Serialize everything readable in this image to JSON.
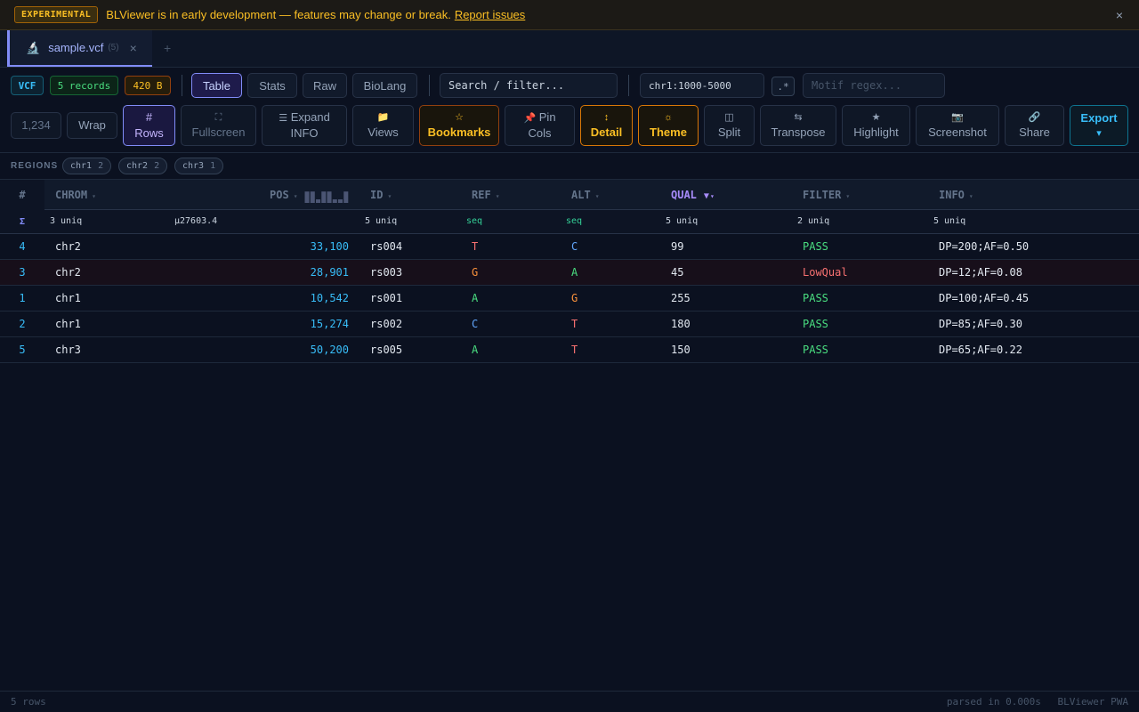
{
  "banner": {
    "badge": "EXPERIMENTAL",
    "text": "BLViewer is in early development — features may change or break.",
    "link": "Report issues",
    "close": "×"
  },
  "tabs": {
    "file_icon": "microscope-icon",
    "file_name": "sample.vcf",
    "file_count": "(5)",
    "close": "×",
    "add": "+"
  },
  "toolbar": {
    "format": "VCF",
    "records": "5 records",
    "size": "420 B",
    "views": [
      "Table",
      "Stats",
      "Raw",
      "BioLang"
    ],
    "active_view": "Table",
    "search_placeholder": "Search / filter...",
    "region_value": "chr1:1000-5000",
    "regex_toggle": ".*",
    "motif_placeholder": "Motif regex...",
    "buttons": {
      "number_format": "1,234",
      "wrap": "Wrap",
      "rows_icon": "#",
      "rows": "Rows",
      "fullscreen_icon": "⛶",
      "fullscreen": "Fullscreen",
      "expand_icon": "☰",
      "expand_1": "Expand",
      "expand_2": "INFO",
      "views_icon": "📁",
      "views": "Views",
      "bookmarks_icon": "☆",
      "bookmarks": "Bookmarks",
      "pin_icon": "📌",
      "pin_1": "Pin",
      "pin_2": "Cols",
      "detail_icon": "↕",
      "detail": "Detail",
      "theme_icon": "☼",
      "theme": "Theme",
      "split_icon": "◫",
      "split": "Split",
      "transpose_icon": "⇆",
      "transpose": "Transpose",
      "highlight_icon": "★",
      "highlight": "Highlight",
      "screenshot_icon": "📷",
      "screenshot": "Screenshot",
      "share_icon": "🔗",
      "share": "Share",
      "export": "Export",
      "export_caret": "▾"
    }
  },
  "regions": {
    "label": "REGIONS",
    "chips": [
      {
        "name": "chr1",
        "count": "2"
      },
      {
        "name": "chr2",
        "count": "2"
      },
      {
        "name": "chr3",
        "count": "1"
      }
    ]
  },
  "table": {
    "row_number_header": "#",
    "columns": [
      "CHROM",
      "POS",
      "ID",
      "REF",
      "ALT",
      "QUAL",
      "FILTER",
      "INFO"
    ],
    "sort_arrow": "▾",
    "sorted_column": "QUAL",
    "sorted_indicator": "▼",
    "pos_histogram": [
      0.8,
      0.8,
      0.25,
      0.8,
      0.8,
      0.25,
      0.25,
      0.8
    ],
    "summary": {
      "sigma": "Σ",
      "chrom": "3 uniq",
      "pos": "μ27603.4",
      "id": "5 uniq",
      "ref": "seq",
      "alt": "seq",
      "qual": "5 uniq",
      "filter": "2 uniq",
      "info": "5 uniq"
    },
    "rows": [
      {
        "n": "4",
        "chrom": "chr2",
        "pos": "33,100",
        "id": "rs004",
        "ref": "T",
        "alt": "C",
        "qual": "99",
        "filter": "PASS",
        "info": "DP=200;AF=0.50"
      },
      {
        "n": "3",
        "chrom": "chr2",
        "pos": "28,901",
        "id": "rs003",
        "ref": "G",
        "alt": "A",
        "qual": "45",
        "filter": "LowQual",
        "info": "DP=12;AF=0.08"
      },
      {
        "n": "1",
        "chrom": "chr1",
        "pos": "10,542",
        "id": "rs001",
        "ref": "A",
        "alt": "G",
        "qual": "255",
        "filter": "PASS",
        "info": "DP=100;AF=0.45"
      },
      {
        "n": "2",
        "chrom": "chr1",
        "pos": "15,274",
        "id": "rs002",
        "ref": "C",
        "alt": "T",
        "qual": "180",
        "filter": "PASS",
        "info": "DP=85;AF=0.30"
      },
      {
        "n": "5",
        "chrom": "chr3",
        "pos": "50,200",
        "id": "rs005",
        "ref": "A",
        "alt": "T",
        "qual": "150",
        "filter": "PASS",
        "info": "DP=65;AF=0.22"
      }
    ]
  },
  "colors": {
    "base_A": "#4ade80",
    "base_C": "#60a5fa",
    "base_G": "#fb923c",
    "base_T": "#f87171",
    "filter_pass": "#4ade80",
    "filter_fail": "#f87171"
  },
  "status": {
    "rows": "5 rows",
    "parsed": "parsed in 0.000s",
    "app": "BLViewer PWA"
  }
}
